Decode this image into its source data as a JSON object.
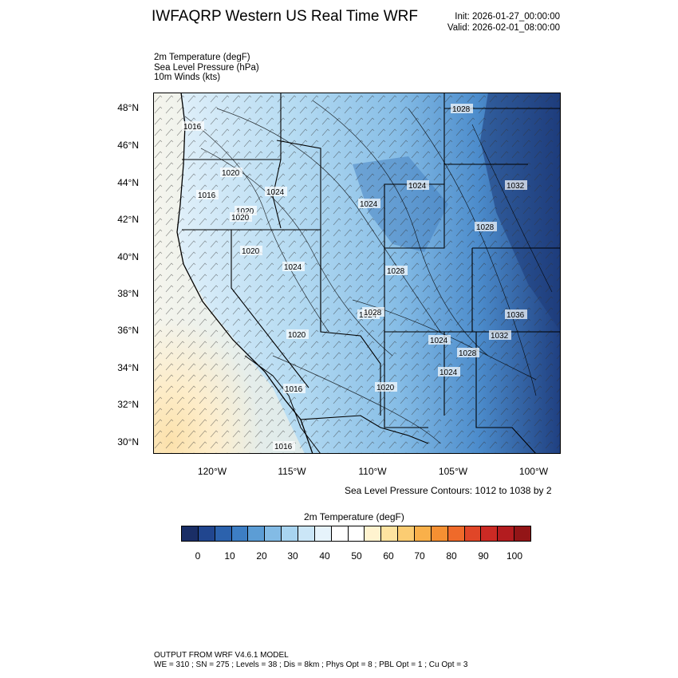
{
  "title": "IWFAQRP Western US Real Time WRF",
  "init": "Init: 2026-01-27_00:00:00",
  "valid": "Valid: 2026-02-01_08:00:00",
  "fields": [
    "2m Temperature   (degF)",
    "Sea Level Pressure   (hPa)",
    "10m Winds   (kts)"
  ],
  "map": {
    "lat_labels": [
      "48°N",
      "46°N",
      "44°N",
      "42°N",
      "40°N",
      "38°N",
      "36°N",
      "34°N",
      "32°N",
      "30°N"
    ],
    "lon_labels": [
      "120°W",
      "115°W",
      "110°W",
      "105°W",
      "100°W"
    ],
    "slp_contour_labels": [
      {
        "text": "1016"
      },
      {
        "text": "1020"
      },
      {
        "text": "1016"
      },
      {
        "text": "1020"
      },
      {
        "text": "1024"
      },
      {
        "text": "1020"
      },
      {
        "text": "1024"
      },
      {
        "text": "1024"
      },
      {
        "text": "1028"
      },
      {
        "text": "1024"
      },
      {
        "text": "1020"
      },
      {
        "text": "1016"
      },
      {
        "text": "1020"
      },
      {
        "text": "1016"
      },
      {
        "text": "1020"
      },
      {
        "text": "1024"
      },
      {
        "text": "1028"
      },
      {
        "text": "1028"
      },
      {
        "text": "1032"
      },
      {
        "text": "1036"
      },
      {
        "text": "1032"
      },
      {
        "text": "1028"
      },
      {
        "text": "1024"
      },
      {
        "text": "1028"
      },
      {
        "text": "1024"
      }
    ]
  },
  "slp_note": "Sea Level Pressure Contours: 1012 to 1038 by 2",
  "colorbar": {
    "title": "2m Temperature  (degF)",
    "tick_labels": [
      "0",
      "10",
      "20",
      "30",
      "40",
      "50",
      "60",
      "70",
      "80",
      "90",
      "100"
    ],
    "colors": [
      "#1a2e66",
      "#21468f",
      "#2c62ad",
      "#3d7ec4",
      "#5c9dd5",
      "#83bbe5",
      "#a8d4f0",
      "#cbe6f7",
      "#e6f3fb",
      "#ffffff",
      "#ffffff",
      "#fff3cf",
      "#fde3a0",
      "#fbcc72",
      "#f9b04a",
      "#f59032",
      "#ef6a2a",
      "#e04628",
      "#cb2a24",
      "#b31c1f",
      "#931517"
    ]
  },
  "footer": {
    "line1": "OUTPUT FROM WRF V4.6.1 MODEL",
    "line2": "WE = 310 ; SN = 275 ; Levels = 38 ; Dis = 8km ; Phys Opt = 8 ; PBL Opt = 1 ; Cu Opt = 3"
  }
}
